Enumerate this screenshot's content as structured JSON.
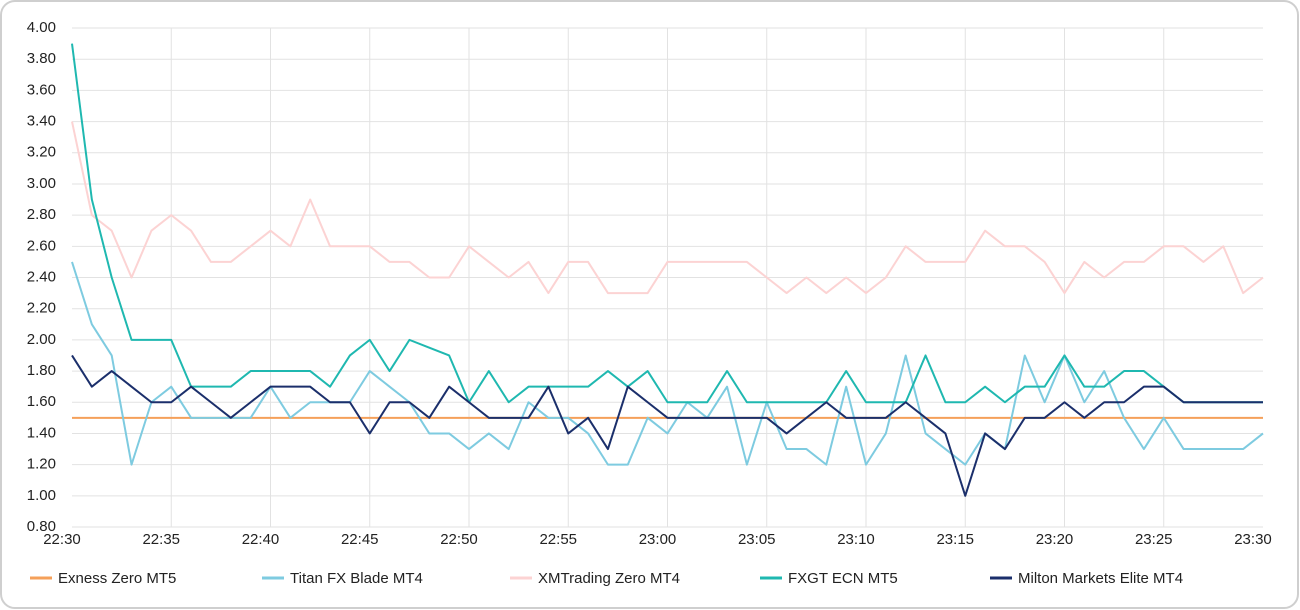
{
  "chart_data": {
    "type": "line",
    "categories": [
      "22:30",
      null,
      null,
      null,
      null,
      "22:35",
      null,
      null,
      null,
      null,
      "22:40",
      null,
      null,
      null,
      null,
      "22:45",
      null,
      null,
      null,
      null,
      "22:50",
      null,
      null,
      null,
      null,
      "22:55",
      null,
      null,
      null,
      null,
      "23:00",
      null,
      null,
      null,
      null,
      "23:05",
      null,
      null,
      null,
      null,
      "23:10",
      null,
      null,
      null,
      null,
      "23:15",
      null,
      null,
      null,
      null,
      "23:20",
      null,
      null,
      null,
      null,
      "23:25",
      null,
      null,
      null,
      null,
      "23:30"
    ],
    "ylim": [
      0.8,
      4.0
    ],
    "yticks": [
      {
        "value": 0.8,
        "label": "0.80"
      },
      {
        "value": 1.0,
        "label": "1.00"
      },
      {
        "value": 1.2,
        "label": "1.20"
      },
      {
        "value": 1.4,
        "label": "1.40"
      },
      {
        "value": 1.6,
        "label": "1.60"
      },
      {
        "value": 1.8,
        "label": "1.80"
      },
      {
        "value": 2.0,
        "label": "2.00"
      },
      {
        "value": 2.2,
        "label": "2.20"
      },
      {
        "value": 2.4,
        "label": "2.40"
      },
      {
        "value": 2.6,
        "label": "2.60"
      },
      {
        "value": 2.8,
        "label": "2.80"
      },
      {
        "value": 3.0,
        "label": "3.00"
      },
      {
        "value": 3.2,
        "label": "3.20"
      },
      {
        "value": 3.4,
        "label": "3.40"
      },
      {
        "value": 3.6,
        "label": "3.60"
      },
      {
        "value": 3.8,
        "label": "3.80"
      },
      {
        "value": 4.0,
        "label": "4.00"
      }
    ],
    "grid": true,
    "legend": "bottom",
    "series": [
      {
        "name": "Exness Zero MT5",
        "color": "#f5a05a",
        "values": [
          1.5,
          1.5,
          1.5,
          1.5,
          1.5,
          1.5,
          1.5,
          1.5,
          1.5,
          1.5,
          1.5,
          1.5,
          1.5,
          1.5,
          1.5,
          1.5,
          1.5,
          1.5,
          1.5,
          1.5,
          1.5,
          1.5,
          1.5,
          1.5,
          1.5,
          1.5,
          1.5,
          1.5,
          1.5,
          1.5,
          1.5,
          1.5,
          1.5,
          1.5,
          1.5,
          1.5,
          1.5,
          1.5,
          1.5,
          1.5,
          1.5,
          1.5,
          1.5,
          1.5,
          1.5,
          1.5,
          1.5,
          1.5,
          1.5,
          1.5,
          1.5,
          1.5,
          1.5,
          1.5,
          1.5,
          1.5,
          1.5,
          1.5,
          1.5,
          1.5,
          1.5
        ]
      },
      {
        "name": "Titan FX Blade MT4",
        "color": "#7ecbe0",
        "values": [
          2.5,
          2.1,
          1.9,
          1.2,
          1.6,
          1.7,
          1.5,
          1.5,
          1.5,
          1.5,
          1.7,
          1.5,
          1.6,
          1.6,
          1.6,
          1.8,
          1.7,
          1.6,
          1.4,
          1.4,
          1.3,
          1.4,
          1.3,
          1.6,
          1.5,
          1.5,
          1.4,
          1.2,
          1.2,
          1.5,
          1.4,
          1.6,
          1.5,
          1.7,
          1.2,
          1.6,
          1.3,
          1.3,
          1.2,
          1.7,
          1.2,
          1.4,
          1.9,
          1.4,
          1.3,
          1.2,
          1.4,
          1.3,
          1.9,
          1.6,
          1.9,
          1.6,
          1.8,
          1.5,
          1.3,
          1.5,
          1.3,
          1.3,
          1.3,
          1.3,
          1.4
        ]
      },
      {
        "name": "XMTrading Zero MT4",
        "color": "#fcd3d3",
        "values": [
          3.4,
          2.8,
          2.7,
          2.4,
          2.7,
          2.8,
          2.7,
          2.5,
          2.5,
          2.6,
          2.7,
          2.6,
          2.9,
          2.6,
          2.6,
          2.6,
          2.5,
          2.5,
          2.4,
          2.4,
          2.6,
          2.5,
          2.4,
          2.5,
          2.3,
          2.5,
          2.5,
          2.3,
          2.3,
          2.3,
          2.5,
          2.5,
          2.5,
          2.5,
          2.5,
          2.4,
          2.3,
          2.4,
          2.3,
          2.4,
          2.3,
          2.4,
          2.6,
          2.5,
          2.5,
          2.5,
          2.7,
          2.6,
          2.6,
          2.5,
          2.3,
          2.5,
          2.4,
          2.5,
          2.5,
          2.6,
          2.6,
          2.5,
          2.6,
          2.3,
          2.4
        ]
      },
      {
        "name": "FXGT ECN MT5",
        "color": "#1fb8b0",
        "values": [
          3.9,
          2.9,
          2.4,
          2.0,
          2.0,
          2.0,
          1.7,
          1.7,
          1.7,
          1.8,
          1.8,
          1.8,
          1.8,
          1.7,
          1.9,
          2.0,
          1.8,
          2.0,
          1.95,
          1.9,
          1.6,
          1.8,
          1.6,
          1.7,
          1.7,
          1.7,
          1.7,
          1.8,
          1.7,
          1.8,
          1.6,
          1.6,
          1.6,
          1.8,
          1.6,
          1.6,
          1.6,
          1.6,
          1.6,
          1.8,
          1.6,
          1.6,
          1.6,
          1.9,
          1.6,
          1.6,
          1.7,
          1.6,
          1.7,
          1.7,
          1.9,
          1.7,
          1.7,
          1.8,
          1.8,
          1.7,
          1.6,
          1.6,
          1.6,
          1.6,
          1.6
        ]
      },
      {
        "name": "Milton Markets Elite MT4",
        "color": "#1b2f6b",
        "values": [
          1.9,
          1.7,
          1.8,
          1.7,
          1.6,
          1.6,
          1.7,
          1.6,
          1.5,
          1.6,
          1.7,
          1.7,
          1.7,
          1.6,
          1.6,
          1.4,
          1.6,
          1.6,
          1.5,
          1.7,
          1.6,
          1.5,
          1.5,
          1.5,
          1.7,
          1.4,
          1.5,
          1.3,
          1.7,
          1.6,
          1.5,
          1.5,
          1.5,
          1.5,
          1.5,
          1.5,
          1.4,
          1.5,
          1.6,
          1.5,
          1.5,
          1.5,
          1.6,
          1.5,
          1.4,
          1.0,
          1.4,
          1.3,
          1.5,
          1.5,
          1.6,
          1.5,
          1.6,
          1.6,
          1.7,
          1.7,
          1.6,
          1.6,
          1.6,
          1.6,
          1.6
        ]
      }
    ]
  }
}
